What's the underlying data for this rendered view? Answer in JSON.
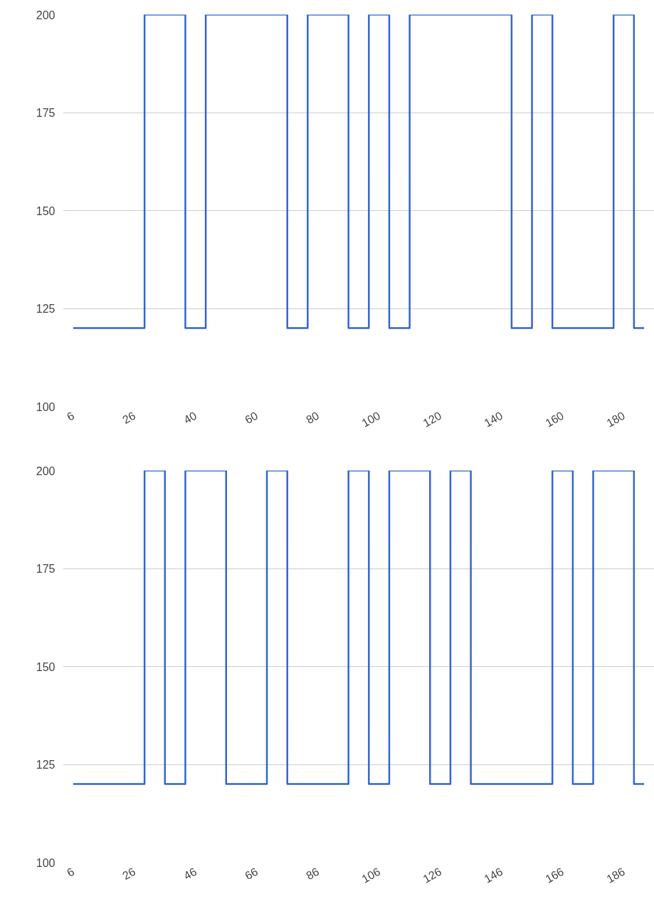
{
  "chart_data": [
    {
      "type": "step",
      "categories": [
        "6",
        null,
        null,
        "26",
        null,
        null,
        "40",
        null,
        null,
        "60",
        null,
        null,
        "80",
        null,
        null,
        "100",
        null,
        null,
        "120",
        null,
        null,
        "140",
        null,
        null,
        "160",
        null,
        null,
        "180",
        null
      ],
      "values": [
        120,
        120,
        120,
        120,
        200,
        200,
        120,
        200,
        200,
        200,
        200,
        120,
        200,
        200,
        120,
        200,
        120,
        200,
        200,
        200,
        200,
        200,
        120,
        200,
        120,
        120,
        120,
        200,
        120
      ],
      "color": "#3366cc",
      "ylim": [
        100,
        200
      ],
      "yticks": [
        100,
        125,
        150,
        175,
        200
      ],
      "grid": "y"
    },
    {
      "type": "step",
      "categories": [
        "6",
        null,
        null,
        "26",
        null,
        null,
        "46",
        null,
        null,
        "66",
        null,
        null,
        "86",
        null,
        null,
        "106",
        null,
        null,
        "126",
        null,
        null,
        "146",
        null,
        null,
        "166",
        null,
        null,
        "186",
        null
      ],
      "values": [
        120,
        120,
        120,
        120,
        200,
        120,
        200,
        200,
        120,
        120,
        200,
        120,
        120,
        120,
        200,
        120,
        200,
        200,
        120,
        200,
        120,
        120,
        120,
        120,
        200,
        120,
        200,
        200,
        120
      ],
      "color": "#3366cc",
      "ylim": [
        100,
        200
      ],
      "yticks": [
        100,
        125,
        150,
        175,
        200
      ],
      "grid": "y"
    }
  ]
}
